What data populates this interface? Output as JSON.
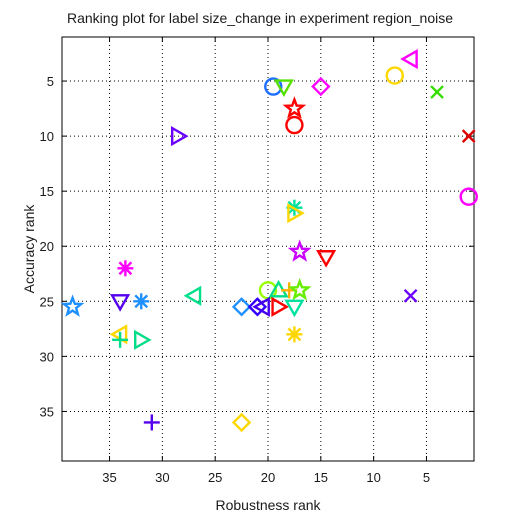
{
  "chart_data": {
    "type": "scatter",
    "title": "Ranking plot for label size_change in experiment region_noise",
    "xlabel": "Robustness rank",
    "ylabel": "Accuracy rank",
    "xlim": [
      39.5,
      0.5
    ],
    "ylim": [
      39.5,
      1
    ],
    "x_reversed": true,
    "y_reversed": true,
    "xticks": [
      35,
      30,
      25,
      20,
      15,
      10,
      5
    ],
    "yticks": [
      5,
      10,
      15,
      20,
      25,
      30,
      35
    ],
    "grid": true,
    "points": [
      {
        "x": 6.5,
        "y": 3,
        "marker": "triangle-left",
        "color": "#ff00ff"
      },
      {
        "x": 8,
        "y": 4.5,
        "marker": "circle",
        "color": "#ffd700"
      },
      {
        "x": 4,
        "y": 6,
        "marker": "x",
        "color": "#33dd00"
      },
      {
        "x": 19.5,
        "y": 5.5,
        "marker": "circle",
        "color": "#1e6fff"
      },
      {
        "x": 18.5,
        "y": 5.5,
        "marker": "triangle-down",
        "color": "#55e000"
      },
      {
        "x": 15,
        "y": 5.5,
        "marker": "diamond",
        "color": "#ff00ff"
      },
      {
        "x": 17.5,
        "y": 7.5,
        "marker": "star",
        "color": "#ff0000"
      },
      {
        "x": 17.5,
        "y": 9,
        "marker": "circle",
        "color": "#ff0000"
      },
      {
        "x": 28.5,
        "y": 10,
        "marker": "triangle-right",
        "color": "#6a00ff"
      },
      {
        "x": 1,
        "y": 10,
        "marker": "x",
        "color": "#dd0000"
      },
      {
        "x": 1,
        "y": 15.5,
        "marker": "circle",
        "color": "#ff00ff"
      },
      {
        "x": 17.5,
        "y": 16.5,
        "marker": "asterisk",
        "color": "#00e0a0"
      },
      {
        "x": 17.5,
        "y": 17,
        "marker": "triangle-right",
        "color": "#ffd700"
      },
      {
        "x": 17,
        "y": 20.5,
        "marker": "star",
        "color": "#cc00ff"
      },
      {
        "x": 14.5,
        "y": 21,
        "marker": "triangle-down",
        "color": "#ff0000"
      },
      {
        "x": 33.5,
        "y": 22,
        "marker": "asterisk",
        "color": "#ff00ff"
      },
      {
        "x": 27,
        "y": 24.5,
        "marker": "triangle-left",
        "color": "#00e08a"
      },
      {
        "x": 6.5,
        "y": 24.5,
        "marker": "x",
        "color": "#6a00ff"
      },
      {
        "x": 20,
        "y": 24,
        "marker": "circle",
        "color": "#99ff00"
      },
      {
        "x": 19,
        "y": 24,
        "marker": "triangle-up",
        "color": "#00dd88"
      },
      {
        "x": 18,
        "y": 24,
        "marker": "plus",
        "color": "#ffb000"
      },
      {
        "x": 17,
        "y": 24,
        "marker": "star",
        "color": "#66ee00"
      },
      {
        "x": 34,
        "y": 25,
        "marker": "triangle-down",
        "color": "#5500ee"
      },
      {
        "x": 32,
        "y": 25,
        "marker": "asterisk",
        "color": "#1e90ff"
      },
      {
        "x": 38.5,
        "y": 25.5,
        "marker": "star",
        "color": "#1e90ff"
      },
      {
        "x": 22.5,
        "y": 25.5,
        "marker": "diamond",
        "color": "#1e90ff"
      },
      {
        "x": 21,
        "y": 25.5,
        "marker": "diamond",
        "color": "#3300ff"
      },
      {
        "x": 20.5,
        "y": 25.5,
        "marker": "triangle-left",
        "color": "#4400ee"
      },
      {
        "x": 19,
        "y": 25.5,
        "marker": "triangle-right",
        "color": "#ff0000"
      },
      {
        "x": 17.5,
        "y": 25.5,
        "marker": "triangle-down",
        "color": "#00e0a0"
      },
      {
        "x": 34,
        "y": 28,
        "marker": "triangle-left",
        "color": "#ffd700"
      },
      {
        "x": 34,
        "y": 28.5,
        "marker": "plus",
        "color": "#00dd88"
      },
      {
        "x": 32,
        "y": 28.5,
        "marker": "triangle-right",
        "color": "#00dd88"
      },
      {
        "x": 17.5,
        "y": 28,
        "marker": "asterisk",
        "color": "#ffd700"
      },
      {
        "x": 31,
        "y": 36,
        "marker": "plus",
        "color": "#5500ee"
      },
      {
        "x": 22.5,
        "y": 36,
        "marker": "diamond",
        "color": "#ffd700"
      }
    ]
  }
}
